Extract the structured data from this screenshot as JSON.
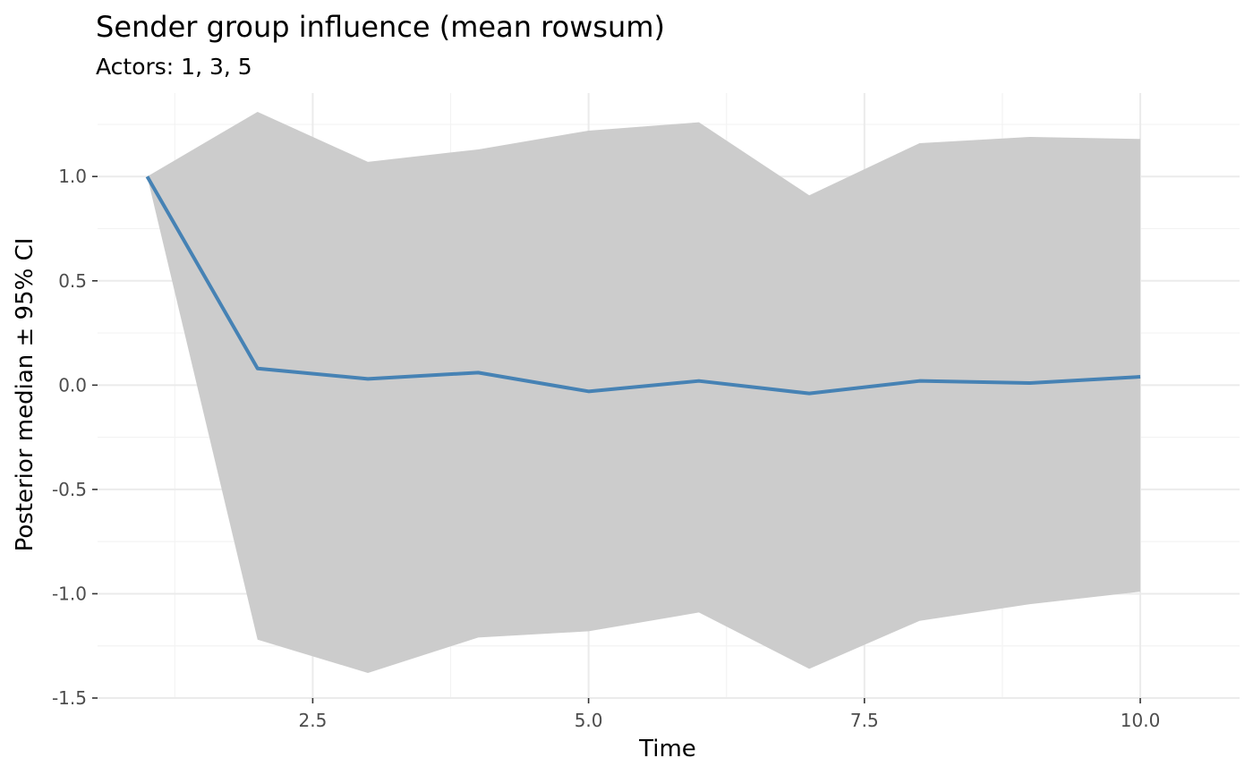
{
  "chart_data": {
    "type": "line",
    "title": "Sender group influence (mean rowsum)",
    "subtitle": "Actors: 1, 3, 5",
    "xlabel": "Time",
    "ylabel": "Posterior median ± 95% CI",
    "x": [
      1,
      2,
      3,
      4,
      5,
      6,
      7,
      8,
      9,
      10
    ],
    "series": [
      {
        "median": [
          1.0,
          0.08,
          0.03,
          0.06,
          -0.03,
          0.02,
          -0.04,
          0.02,
          0.01,
          0.04
        ],
        "lower": [
          1.0,
          -1.22,
          -1.38,
          -1.21,
          -1.18,
          -1.09,
          -1.36,
          -1.13,
          -1.05,
          -0.99
        ],
        "upper": [
          1.0,
          1.31,
          1.07,
          1.13,
          1.22,
          1.26,
          0.91,
          1.16,
          1.19,
          1.18
        ]
      }
    ],
    "xlim": [
      0.55,
      10.9
    ],
    "ylim": [
      -1.5,
      1.4
    ],
    "x_ticks": [
      2.5,
      5.0,
      7.5,
      10.0
    ],
    "x_tick_labels": [
      "2.5",
      "5.0",
      "7.5",
      "10.0"
    ],
    "y_ticks": [
      -1.5,
      -1.0,
      -0.5,
      0.0,
      0.5,
      1.0
    ],
    "y_tick_labels": [
      "-1.5",
      "-1.0",
      "-0.5",
      "0.0",
      "0.5",
      "1.0"
    ],
    "grid": true,
    "colors": {
      "line": "#4682b4",
      "ribbon": "#cccccc",
      "grid_major": "#ebebeb",
      "grid_minor": "#f3f3f3"
    }
  }
}
